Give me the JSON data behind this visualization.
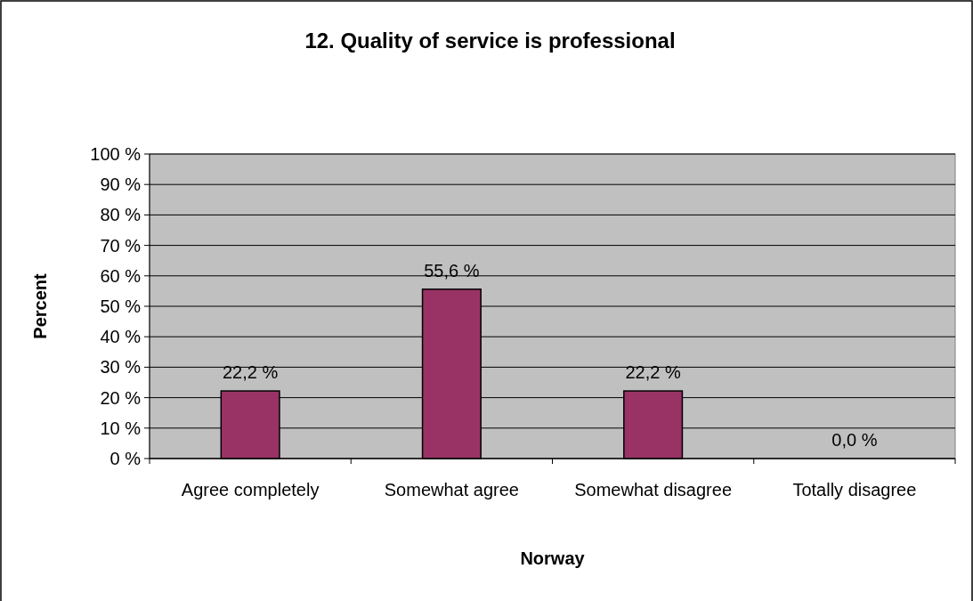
{
  "chart_data": {
    "type": "bar",
    "title": "12. Quality of service is professional",
    "xlabel": "Norway",
    "ylabel": "Percent",
    "categories": [
      "Agree completely",
      "Somewhat agree",
      "Somewhat disagree",
      "Totally disagree"
    ],
    "values": [
      22.2,
      55.6,
      22.2,
      0.0
    ],
    "value_labels": [
      "22,2 %",
      "55,6 %",
      "22,2 %",
      "0,0 %"
    ],
    "color": "#993366",
    "ylim": [
      0,
      100
    ],
    "yticks": [
      {
        "value": 0,
        "label": "0 %"
      },
      {
        "value": 10,
        "label": "10 %"
      },
      {
        "value": 20,
        "label": "20 %"
      },
      {
        "value": 30,
        "label": "30 %"
      },
      {
        "value": 40,
        "label": "40 %"
      },
      {
        "value": 50,
        "label": "50 %"
      },
      {
        "value": 60,
        "label": "60 %"
      },
      {
        "value": 70,
        "label": "70 %"
      },
      {
        "value": 80,
        "label": "80 %"
      },
      {
        "value": 90,
        "label": "90 %"
      },
      {
        "value": 100,
        "label": "100 %"
      }
    ],
    "grid": "y"
  }
}
